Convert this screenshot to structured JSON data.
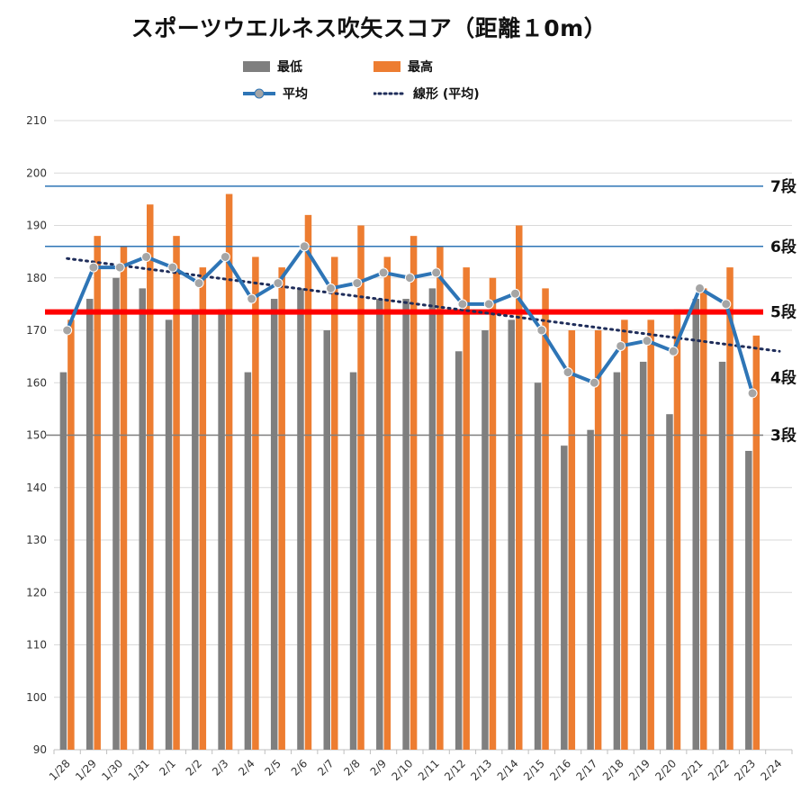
{
  "chart_data": {
    "type": "bar",
    "title": "スポーツウエルネス吹矢スコア（距離１0m）",
    "categories": [
      "1/28",
      "1/29",
      "1/30",
      "1/31",
      "2/1",
      "2/2",
      "2/3",
      "2/4",
      "2/5",
      "2/6",
      "2/7",
      "2/8",
      "2/9",
      "2/10",
      "2/11",
      "2/12",
      "2/13",
      "2/14",
      "2/15",
      "2/16",
      "2/17",
      "2/18",
      "2/19",
      "2/20",
      "2/21",
      "2/22",
      "2/23",
      "2/24"
    ],
    "series": [
      {
        "name": "最低",
        "type": "bar",
        "color": "#7f7f7f",
        "values": [
          162,
          176,
          180,
          178,
          172,
          174,
          174,
          162,
          176,
          178,
          170,
          162,
          176,
          176,
          178,
          166,
          170,
          172,
          160,
          148,
          151,
          162,
          164,
          154,
          176,
          164,
          147,
          null
        ]
      },
      {
        "name": "最高",
        "type": "bar",
        "color": "#ed7d31",
        "values": [
          172,
          188,
          186,
          194,
          188,
          182,
          196,
          184,
          182,
          192,
          184,
          190,
          184,
          188,
          186,
          182,
          180,
          190,
          178,
          170,
          170,
          172,
          172,
          174,
          178,
          182,
          169,
          null
        ]
      },
      {
        "name": "平均",
        "type": "line",
        "color": "#2e75b6",
        "values": [
          170,
          182,
          182,
          184,
          182,
          179,
          184,
          176,
          179,
          186,
          178,
          179,
          181,
          180,
          181,
          175,
          175,
          177,
          170,
          162,
          160,
          167,
          168,
          166,
          178,
          175,
          158,
          null
        ]
      },
      {
        "name": "線形 (平均)",
        "type": "trendline",
        "color": "#1f2d5a",
        "start": 183.7,
        "end": 166.0
      }
    ],
    "ylim": [
      90,
      210
    ],
    "yticks": [
      90,
      100,
      110,
      120,
      130,
      140,
      150,
      160,
      170,
      180,
      190,
      200,
      210
    ],
    "grid": true,
    "legend_position": "top",
    "reference_lines": [
      {
        "label": "7段",
        "value": 197.5,
        "color": "#2e75b6",
        "label_color": "#111111",
        "width": 1.5
      },
      {
        "label": "6段",
        "value": 186,
        "color": "#2e75b6",
        "label_color": "#111111",
        "width": 1.5
      },
      {
        "label": "5段",
        "value": 173.5,
        "color": "#ff0000",
        "label_color": "#2e75b6",
        "width": 6
      },
      {
        "label": "4段",
        "value": 161,
        "color": "#2e75b6",
        "label_color": "#111111",
        "width": 0
      },
      {
        "label": "3段",
        "value": 150,
        "color": "#7f7f7f",
        "label_color": "#111111",
        "width": 1.5
      }
    ]
  },
  "legend": {
    "min_label": "最低",
    "max_label": "最高",
    "avg_label": "平均",
    "trend_label": "線形 (平均)",
    "min_color": "#7f7f7f",
    "max_color": "#ed7d31",
    "avg_color": "#2e75b6",
    "trend_color": "#1f2d5a"
  }
}
